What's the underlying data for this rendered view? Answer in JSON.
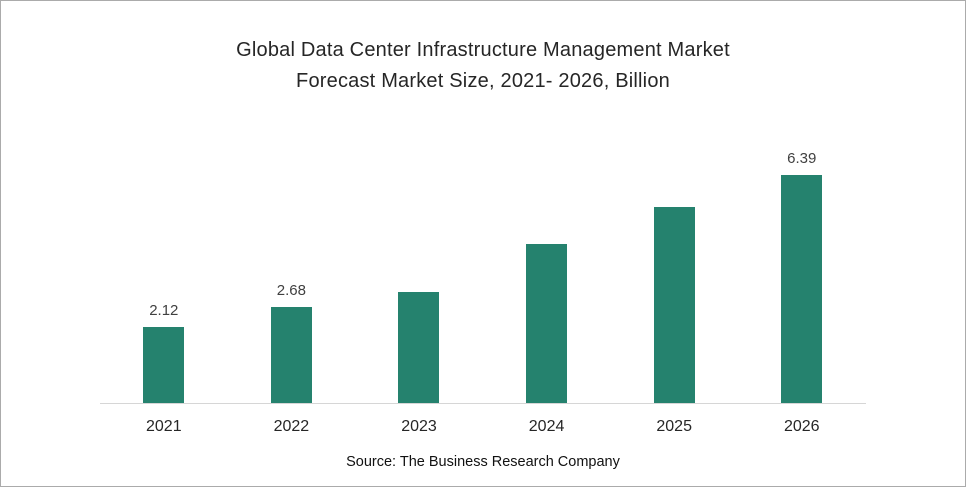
{
  "title_line1": "Global Data Center Infrastructure Management Market",
  "title_line2": "Forecast Market Size, 2021- 2026, Billion",
  "source": "Source: The Business Research Company",
  "colors": {
    "bar": "#25826E",
    "axis": "#d6d6d6",
    "title_text": "#262626",
    "label_text": "#404040"
  },
  "chart_data": {
    "type": "bar",
    "title": "Global Data Center Infrastructure Management Market Forecast Market Size, 2021- 2026, Billion",
    "categories": [
      "2021",
      "2022",
      "2023",
      "2024",
      "2025",
      "2026"
    ],
    "values": [
      2.12,
      2.68,
      3.1,
      4.45,
      5.5,
      6.39
    ],
    "data_labels": [
      "2.12",
      "2.68",
      "",
      "",
      "",
      "6.39"
    ],
    "xlabel": "",
    "ylabel": "",
    "ylim": [
      0,
      7
    ],
    "grid": false,
    "legend": false,
    "bar_color": "#25826E",
    "source": "Source: The Business Research Company"
  }
}
